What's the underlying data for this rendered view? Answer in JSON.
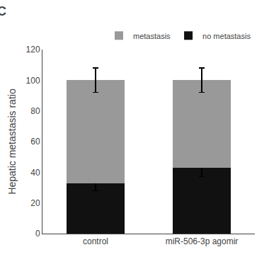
{
  "chart_data": {
    "type": "bar",
    "stacked": true,
    "categories": [
      "control",
      "miR-506-3p agomir"
    ],
    "series": [
      {
        "name": "no metastasis",
        "color": "#111111",
        "values": [
          33,
          43
        ],
        "errors": [
          5,
          6
        ]
      },
      {
        "name": "metastasis",
        "color": "#999999",
        "values": [
          67,
          57
        ],
        "errors": [
          8,
          8
        ]
      }
    ],
    "ylabel": "Hepatic metastasis ratio",
    "ylim": [
      0,
      120
    ],
    "yticks": [
      0,
      20,
      40,
      60,
      80,
      100,
      120
    ],
    "legend": "upper right",
    "grid": false,
    "annotations": [
      "C"
    ]
  }
}
